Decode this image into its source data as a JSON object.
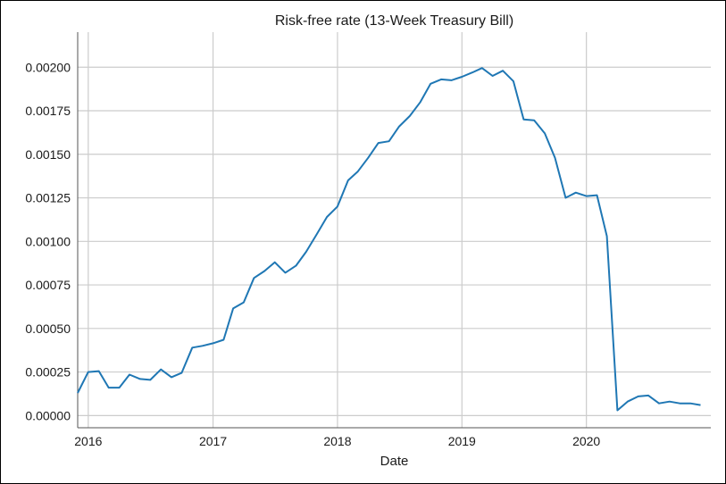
{
  "chart_data": {
    "type": "line",
    "title": "Risk-free rate (13-Week Treasury Bill)",
    "xlabel": "Date",
    "ylabel": "",
    "x_axis_type": "date",
    "xlim": [
      "2015-12-01",
      "2020-12-31"
    ],
    "ylim": [
      -7e-05,
      0.00215
    ],
    "grid": true,
    "line_color": "#1f77b4",
    "yticks": [
      0.0,
      0.00025,
      0.0005,
      0.00075,
      0.001,
      0.00125,
      0.0015,
      0.00175,
      0.002
    ],
    "ytick_labels": [
      "0.00000",
      "0.00025",
      "0.00050",
      "0.00075",
      "0.00100",
      "0.00125",
      "0.00150",
      "0.00175",
      "0.00200"
    ],
    "xticks": [
      "2016-01-01",
      "2017-01-01",
      "2018-01-01",
      "2019-01-01",
      "2020-01-01"
    ],
    "xtick_labels": [
      "2016",
      "2017",
      "2018",
      "2019",
      "2020"
    ],
    "series": [
      {
        "x": [
          "2015-12-01",
          "2016-01-01",
          "2016-02-01",
          "2016-03-01",
          "2016-04-01",
          "2016-05-01",
          "2016-06-01",
          "2016-07-01",
          "2016-08-01",
          "2016-09-01",
          "2016-10-01",
          "2016-11-01",
          "2016-12-01",
          "2017-01-01",
          "2017-02-01",
          "2017-03-01",
          "2017-04-01",
          "2017-05-01",
          "2017-06-01",
          "2017-07-01",
          "2017-08-01",
          "2017-09-01",
          "2017-10-01",
          "2017-11-01",
          "2017-12-01",
          "2018-01-01",
          "2018-02-01",
          "2018-03-01",
          "2018-04-01",
          "2018-05-01",
          "2018-06-01",
          "2018-07-01",
          "2018-08-01",
          "2018-09-01",
          "2018-10-01",
          "2018-11-01",
          "2018-12-01",
          "2019-01-01",
          "2019-02-01",
          "2019-03-01",
          "2019-04-01",
          "2019-05-01",
          "2019-06-01",
          "2019-07-01",
          "2019-08-01",
          "2019-09-01",
          "2019-10-01",
          "2019-11-01",
          "2019-12-01",
          "2020-01-01",
          "2020-02-01",
          "2020-03-01",
          "2020-04-01",
          "2020-05-01",
          "2020-06-01",
          "2020-07-01",
          "2020-08-01",
          "2020-09-01",
          "2020-10-01",
          "2020-11-01",
          "2020-12-01"
        ],
        "y": [
          0.00013,
          0.00025,
          0.000255,
          0.00016,
          0.00016,
          0.000235,
          0.00021,
          0.000205,
          0.000265,
          0.00022,
          0.000245,
          0.00039,
          0.0004,
          0.000415,
          0.000435,
          0.000615,
          0.00065,
          0.00079,
          0.00083,
          0.00088,
          0.00082,
          0.00086,
          0.00094,
          0.00104,
          0.00114,
          0.0012,
          0.00135,
          0.0014,
          0.00148,
          0.001565,
          0.001575,
          0.00166,
          0.00172,
          0.0018,
          0.001905,
          0.00193,
          0.001925,
          0.001945,
          0.00197,
          0.001995,
          0.00195,
          0.00198,
          0.00192,
          0.0017,
          0.001695,
          0.00162,
          0.00148,
          0.00125,
          0.00128,
          0.00126,
          0.001265,
          0.00103,
          3e-05,
          8e-05,
          0.00011,
          0.000115,
          7e-05,
          8e-05,
          7e-05,
          7e-05,
          6e-05
        ]
      }
    ]
  }
}
